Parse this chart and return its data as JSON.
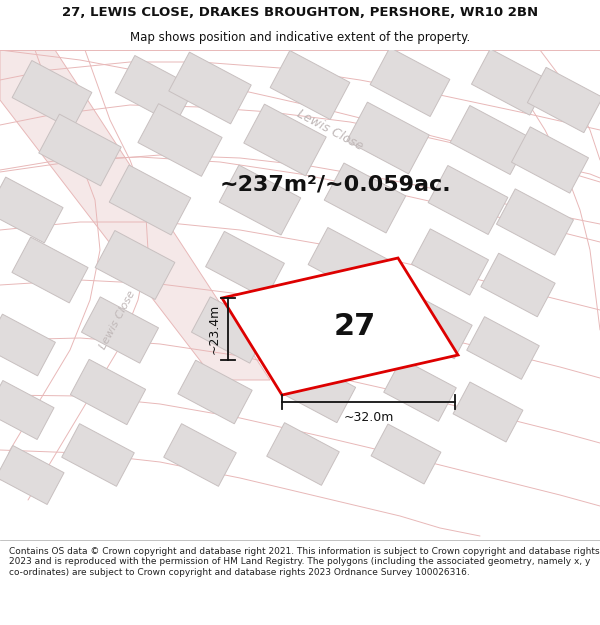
{
  "title_line1": "27, LEWIS CLOSE, DRAKES BROUGHTON, PERSHORE, WR10 2BN",
  "title_line2": "Map shows position and indicative extent of the property.",
  "area_text": "~237m²/~0.059ac.",
  "plot_number": "27",
  "dim_width": "~32.0m",
  "dim_height": "~23.4m",
  "street_label_top": "Lewis Close",
  "street_label_left": "Lewis Close",
  "footer_text": "Contains OS data © Crown copyright and database right 2021. This information is subject to Crown copyright and database rights 2023 and is reproduced with the permission of HM Land Registry. The polygons (including the associated geometry, namely x, y co-ordinates) are subject to Crown copyright and database rights 2023 Ordnance Survey 100026316.",
  "map_bg": "#f9f6f6",
  "road_fill": "#f5e8e8",
  "road_edge": "#e8b8b8",
  "plot_fill": "#ffffff",
  "plot_outline": "#dd0000",
  "building_fill": "#e0dcdc",
  "building_outline": "#c8c0c0",
  "dim_color": "#111111",
  "text_color": "#111111",
  "street_color": "#c0b8b8",
  "title_fs": 9.5,
  "subtitle_fs": 8.5,
  "area_fs": 16,
  "plot_num_fs": 22,
  "dim_fs": 9,
  "street_fs": 9,
  "footer_fs": 6.5
}
